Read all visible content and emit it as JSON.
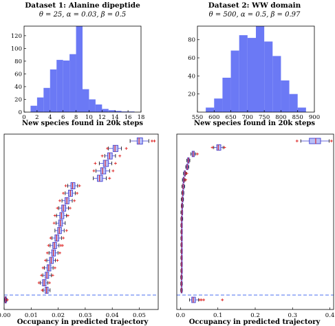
{
  "colors": {
    "bar": "#6b79f5",
    "box": "#4040d0",
    "median": "#d8202a",
    "flier": "#dc2020",
    "dash": "#4a6cf0"
  },
  "chart_data": [
    {
      "type": "bar",
      "title": "Dataset 1: Alanine dipeptide",
      "subtitle": "θ = 25, α = 0.03, β = 0.5",
      "xlabel": "New species found in 20k steps",
      "ylabel": "",
      "xlim": [
        0,
        18
      ],
      "ylim": [
        0,
        135
      ],
      "xticks": [
        "0",
        "2",
        "4",
        "6",
        "8",
        "10",
        "12",
        "14",
        "16",
        "18"
      ],
      "yticks": [
        "0",
        "20",
        "40",
        "60",
        "80",
        "100",
        "120"
      ],
      "bin_edges": [
        1,
        2,
        3,
        4,
        5,
        6,
        7,
        8,
        9,
        10,
        11,
        12,
        13,
        14,
        15,
        16,
        17
      ],
      "values": [
        10,
        23,
        38,
        67,
        82,
        81,
        91,
        135,
        36,
        20,
        12,
        5,
        3,
        2,
        1,
        1
      ]
    },
    {
      "type": "bar",
      "title": "Dataset 2: WW domain",
      "subtitle": "θ = 500, α = 0.5, β = 0.97",
      "xlabel": "New species found in 20k steps",
      "ylabel": "",
      "xlim": [
        550,
        900
      ],
      "ylim": [
        0,
        95
      ],
      "xticks": [
        "550",
        "600",
        "650",
        "700",
        "750",
        "800",
        "850",
        "900"
      ],
      "yticks": [
        "20",
        "40",
        "60",
        "80"
      ],
      "bin_edges": [
        575,
        600,
        625,
        650,
        675,
        700,
        725,
        750,
        775,
        800,
        825,
        850,
        875
      ],
      "values": [
        5,
        15,
        38,
        68,
        85,
        82,
        95,
        78,
        62,
        35,
        20,
        5
      ]
    },
    {
      "type": "box",
      "title": "",
      "xlabel": "Occupancy in predicted trajectory",
      "ylabel": "",
      "xlim": [
        0,
        0.057
      ],
      "xticks": [
        "0.00",
        "0.01",
        "0.02",
        "0.03",
        "0.04",
        "0.05"
      ],
      "reference_line": "dashed",
      "boxes": [
        {
          "q1": 0.0492,
          "med": 0.0499,
          "q3": 0.0512,
          "wlo": 0.0466,
          "whi": 0.0535,
          "fl": [
            0.0547,
            0.0556
          ]
        },
        {
          "q1": 0.0403,
          "med": 0.041,
          "q3": 0.0421,
          "wlo": 0.0386,
          "whi": 0.0434,
          "fl": [
            0.0382,
            0.0452
          ]
        },
        {
          "q1": 0.0383,
          "med": 0.039,
          "q3": 0.04,
          "wlo": 0.0372,
          "whi": 0.0412,
          "fl": [
            0.0363,
            0.0428
          ]
        },
        {
          "q1": 0.0367,
          "med": 0.0374,
          "q3": 0.0386,
          "wlo": 0.0352,
          "whi": 0.0398,
          "fl": [
            0.0337,
            0.0412
          ]
        },
        {
          "q1": 0.0357,
          "med": 0.0364,
          "q3": 0.0376,
          "wlo": 0.034,
          "whi": 0.039,
          "fl": [
            0.0332,
            0.0403
          ]
        },
        {
          "q1": 0.0345,
          "med": 0.0353,
          "q3": 0.0364,
          "wlo": 0.033,
          "whi": 0.0378,
          "fl": [
            0.039
          ]
        },
        {
          "q1": 0.0247,
          "med": 0.0253,
          "q3": 0.0262,
          "wlo": 0.0235,
          "whi": 0.0272,
          "fl": [
            0.0228,
            0.0279
          ]
        },
        {
          "q1": 0.0238,
          "med": 0.0245,
          "q3": 0.0253,
          "wlo": 0.0226,
          "whi": 0.0263,
          "fl": [
            0.0219,
            0.027
          ]
        },
        {
          "q1": 0.0225,
          "med": 0.0232,
          "q3": 0.024,
          "wlo": 0.0214,
          "whi": 0.0252,
          "fl": [
            0.0206,
            0.026
          ]
        },
        {
          "q1": 0.0213,
          "med": 0.0219,
          "q3": 0.0228,
          "wlo": 0.0202,
          "whi": 0.0238,
          "fl": [
            0.0197,
            0.0244
          ]
        },
        {
          "q1": 0.0206,
          "med": 0.0212,
          "q3": 0.0221,
          "wlo": 0.0194,
          "whi": 0.023,
          "fl": [
            0.0188,
            0.0236
          ]
        },
        {
          "q1": 0.0202,
          "med": 0.0208,
          "q3": 0.0216,
          "wlo": 0.0192,
          "whi": 0.0226,
          "fl": [
            0.0185
          ]
        },
        {
          "q1": 0.0198,
          "med": 0.0204,
          "q3": 0.0212,
          "wlo": 0.0188,
          "whi": 0.0222,
          "fl": [
            0.0231
          ]
        },
        {
          "q1": 0.0188,
          "med": 0.0194,
          "q3": 0.0202,
          "wlo": 0.0177,
          "whi": 0.0212,
          "fl": [
            0.0172,
            0.0219
          ]
        },
        {
          "q1": 0.018,
          "med": 0.0186,
          "q3": 0.0194,
          "wlo": 0.017,
          "whi": 0.0203,
          "fl": [
            0.0164,
            0.021,
            0.0216
          ]
        },
        {
          "q1": 0.0176,
          "med": 0.0182,
          "q3": 0.019,
          "wlo": 0.0166,
          "whi": 0.0199,
          "fl": [
            0.016,
            0.0206
          ]
        },
        {
          "q1": 0.0168,
          "med": 0.0174,
          "q3": 0.0182,
          "wlo": 0.0158,
          "whi": 0.019,
          "fl": [
            0.0153,
            0.0197
          ]
        },
        {
          "q1": 0.0159,
          "med": 0.0165,
          "q3": 0.0173,
          "wlo": 0.0149,
          "whi": 0.0181,
          "fl": [
            0.0144,
            0.0188
          ]
        },
        {
          "q1": 0.0152,
          "med": 0.0158,
          "q3": 0.0165,
          "wlo": 0.0143,
          "whi": 0.0174,
          "fl": [
            0.0138,
            0.018
          ]
        },
        {
          "q1": 0.0142,
          "med": 0.0148,
          "q3": 0.0155,
          "wlo": 0.0134,
          "whi": 0.0162,
          "fl": [
            0.0129,
            0.0168
          ]
        },
        {
          "q1": 0.0152,
          "med": 0.0157,
          "q3": 0.0163,
          "wlo": 0.0145,
          "whi": 0.017,
          "fl": [
            0.0141
          ]
        },
        {
          "q1": 0.0003,
          "med": 0.0005,
          "q3": 0.0008,
          "wlo": 0.0001,
          "whi": 0.001,
          "fl": [
            0.0012
          ]
        }
      ]
    },
    {
      "type": "box",
      "title": "",
      "xlabel": "Occupancy in predicted trajectory",
      "ylabel": "",
      "xlim": [
        -0.01,
        0.41
      ],
      "xticks": [
        "0.0",
        "0.1",
        "0.2",
        "0.3",
        "0.4"
      ],
      "reference_line": "dashed",
      "boxes": [
        {
          "q1": 0.345,
          "med": 0.362,
          "q3": 0.375,
          "wlo": 0.322,
          "whi": 0.398,
          "fl": [
            0.312,
            0.404
          ]
        },
        {
          "q1": 0.097,
          "med": 0.101,
          "q3": 0.108,
          "wlo": 0.089,
          "whi": 0.114,
          "fl": [
            0.085,
            0.118
          ]
        },
        {
          "q1": 0.031,
          "med": 0.034,
          "q3": 0.037,
          "wlo": 0.028,
          "whi": 0.04,
          "fl": [
            0.045
          ]
        },
        {
          "q1": 0.019,
          "med": 0.021,
          "q3": 0.023,
          "wlo": 0.017,
          "whi": 0.025,
          "fl": []
        },
        {
          "q1": 0.016,
          "med": 0.018,
          "q3": 0.02,
          "wlo": 0.014,
          "whi": 0.022,
          "fl": []
        },
        {
          "q1": 0.01,
          "med": 0.012,
          "q3": 0.013,
          "wlo": 0.008,
          "whi": 0.015,
          "fl": [
            0.017
          ]
        },
        {
          "q1": 0.007,
          "med": 0.009,
          "q3": 0.01,
          "wlo": 0.005,
          "whi": 0.012,
          "fl": [
            0.014
          ]
        },
        {
          "q1": 0.006,
          "med": 0.007,
          "q3": 0.009,
          "wlo": 0.004,
          "whi": 0.011,
          "fl": []
        },
        {
          "q1": 0.005,
          "med": 0.006,
          "q3": 0.008,
          "wlo": 0.003,
          "whi": 0.009,
          "fl": []
        },
        {
          "q1": 0.004,
          "med": 0.005,
          "q3": 0.006,
          "wlo": 0.002,
          "whi": 0.008,
          "fl": []
        },
        {
          "q1": 0.003,
          "med": 0.004,
          "q3": 0.005,
          "wlo": 0.002,
          "whi": 0.007,
          "fl": []
        },
        {
          "q1": 0.003,
          "med": 0.004,
          "q3": 0.005,
          "wlo": 0.001,
          "whi": 0.006,
          "fl": []
        },
        {
          "q1": 0.002,
          "med": 0.003,
          "q3": 0.004,
          "wlo": 0.001,
          "whi": 0.006,
          "fl": []
        },
        {
          "q1": 0.002,
          "med": 0.003,
          "q3": 0.004,
          "wlo": 0.001,
          "whi": 0.005,
          "fl": []
        },
        {
          "q1": 0.002,
          "med": 0.003,
          "q3": 0.004,
          "wlo": 0.001,
          "whi": 0.005,
          "fl": []
        },
        {
          "q1": 0.002,
          "med": 0.003,
          "q3": 0.004,
          "wlo": 0.001,
          "whi": 0.005,
          "fl": []
        },
        {
          "q1": 0.002,
          "med": 0.003,
          "q3": 0.004,
          "wlo": 0.001,
          "whi": 0.005,
          "fl": []
        },
        {
          "q1": 0.002,
          "med": 0.003,
          "q3": 0.004,
          "wlo": 0.001,
          "whi": 0.005,
          "fl": []
        },
        {
          "q1": 0.002,
          "med": 0.003,
          "q3": 0.004,
          "wlo": 0.001,
          "whi": 0.005,
          "fl": []
        },
        {
          "q1": 0.002,
          "med": 0.003,
          "q3": 0.004,
          "wlo": 0.001,
          "whi": 0.005,
          "fl": []
        },
        {
          "q1": 0.002,
          "med": 0.003,
          "q3": 0.004,
          "wlo": 0.001,
          "whi": 0.005,
          "fl": []
        },
        {
          "q1": 0.0015,
          "med": 0.0025,
          "q3": 0.0035,
          "wlo": 0.0005,
          "whi": 0.005,
          "fl": []
        },
        {
          "q1": 0.0015,
          "med": 0.0025,
          "q3": 0.0035,
          "wlo": 0.0005,
          "whi": 0.005,
          "fl": []
        },
        {
          "q1": 0.0015,
          "med": 0.0025,
          "q3": 0.0035,
          "wlo": 0.0005,
          "whi": 0.005,
          "fl": []
        },
        {
          "q1": 0.03,
          "med": 0.034,
          "q3": 0.04,
          "wlo": 0.024,
          "whi": 0.048,
          "fl": [
            0.052,
            0.056,
            0.062,
            0.112
          ]
        }
      ]
    }
  ]
}
